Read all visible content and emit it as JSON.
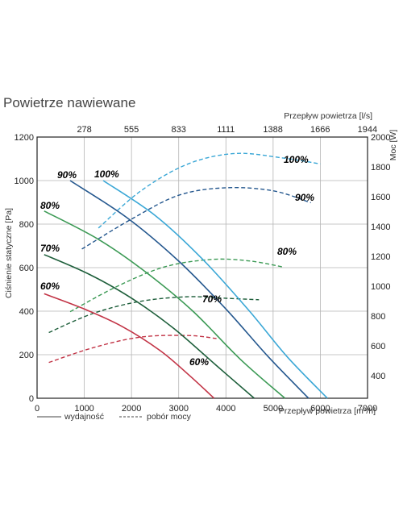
{
  "page_title": "Powietrze nawiewane",
  "legend": {
    "solid": "wydajność",
    "dashed": "pobór mocy"
  },
  "chart_data": {
    "type": "line",
    "x_bottom": {
      "label": "Przepływ powietrza [m³/h]",
      "range": [
        0,
        7000
      ],
      "ticks": [
        "0",
        "1000",
        "2000",
        "3000",
        "4000",
        "5000",
        "6000",
        "7000"
      ]
    },
    "x_top": {
      "label": "Przepływ powietrza [l/s]",
      "ticks": [
        "278",
        "555",
        "833",
        "1111",
        "1388",
        "1666",
        "1944"
      ]
    },
    "y_left": {
      "label": "Ciśnienie statyczne [Pa]",
      "range": [
        0,
        1200
      ],
      "ticks": [
        "0",
        "200",
        "400",
        "600",
        "800",
        "1000",
        "1200"
      ]
    },
    "y_right": {
      "label": "Moc [W]",
      "range": [
        250,
        2000
      ],
      "ticks": [
        "400",
        "600",
        "800",
        "1000",
        "1200",
        "1400",
        "1600",
        "1800",
        "2000"
      ]
    },
    "grid": true,
    "colors": {
      "100%": "#3aa7d6",
      "90%": "#24578e",
      "80%": "#3c9a55",
      "70%": "#1d5e3a",
      "60%": "#c23446"
    },
    "pressure_curves": [
      {
        "name": "100%",
        "points": [
          [
            1400,
            1000
          ],
          [
            2500,
            840
          ],
          [
            3500,
            640
          ],
          [
            4500,
            400
          ],
          [
            5300,
            190
          ],
          [
            6150,
            0
          ]
        ]
      },
      {
        "name": "90%",
        "points": [
          [
            700,
            1000
          ],
          [
            1900,
            830
          ],
          [
            3000,
            630
          ],
          [
            4000,
            410
          ],
          [
            4900,
            190
          ],
          [
            5750,
            0
          ]
        ]
      },
      {
        "name": "80%",
        "points": [
          [
            150,
            860
          ],
          [
            1300,
            730
          ],
          [
            2300,
            580
          ],
          [
            3300,
            400
          ],
          [
            4300,
            180
          ],
          [
            5250,
            0
          ]
        ]
      },
      {
        "name": "70%",
        "points": [
          [
            150,
            660
          ],
          [
            1100,
            570
          ],
          [
            2000,
            460
          ],
          [
            2900,
            320
          ],
          [
            3800,
            150
          ],
          [
            4600,
            0
          ]
        ]
      },
      {
        "name": "60%",
        "points": [
          [
            150,
            480
          ],
          [
            1000,
            410
          ],
          [
            1800,
            330
          ],
          [
            2600,
            220
          ],
          [
            3200,
            110
          ],
          [
            3750,
            0
          ]
        ]
      }
    ],
    "power_curves": [
      {
        "name": "100%",
        "points": [
          [
            1300,
            1390
          ],
          [
            2200,
            1640
          ],
          [
            3200,
            1820
          ],
          [
            4200,
            1890
          ],
          [
            5200,
            1860
          ],
          [
            6000,
            1820
          ]
        ]
      },
      {
        "name": "90%",
        "points": [
          [
            950,
            1250
          ],
          [
            2000,
            1450
          ],
          [
            3000,
            1610
          ],
          [
            4000,
            1660
          ],
          [
            5000,
            1640
          ],
          [
            5800,
            1560
          ]
        ]
      },
      {
        "name": "80%",
        "points": [
          [
            700,
            830
          ],
          [
            1700,
            1000
          ],
          [
            2700,
            1130
          ],
          [
            3700,
            1180
          ],
          [
            4500,
            1170
          ],
          [
            5200,
            1130
          ]
        ]
      },
      {
        "name": "70%",
        "points": [
          [
            250,
            690
          ],
          [
            1200,
            820
          ],
          [
            2200,
            900
          ],
          [
            3200,
            930
          ],
          [
            4000,
            920
          ],
          [
            4700,
            910
          ]
        ]
      },
      {
        "name": "60%",
        "points": [
          [
            250,
            490
          ],
          [
            1200,
            590
          ],
          [
            2200,
            660
          ],
          [
            3200,
            670
          ],
          [
            3800,
            650
          ]
        ]
      }
    ],
    "annotations": [
      "90%",
      "100%",
      "80%",
      "70%",
      "60%",
      "100%",
      "90%",
      "80%",
      "70%",
      "60%"
    ]
  }
}
